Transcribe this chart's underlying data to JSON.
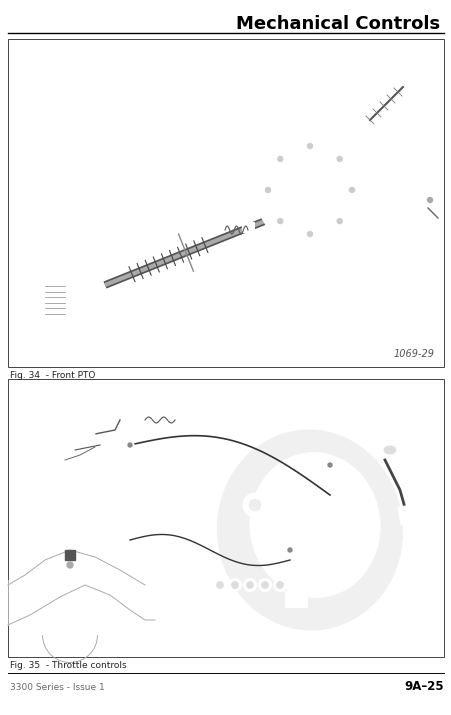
{
  "title": "Mechanical Controls",
  "title_fontsize": 13,
  "title_fontweight": "bold",
  "footer_left": "3300 Series - Issue 1",
  "footer_right": "9A–25",
  "footer_fontsize": 6.5,
  "fig1_caption": "Fig. 34  - Front PTO",
  "fig2_caption": "Fig. 35  - Throttle controls",
  "fig1_label": "1069-29",
  "bg": "#ffffff",
  "box_edge": "#555555",
  "line_color": "#333333",
  "part_color": "#888888",
  "part_edge": "#333333"
}
